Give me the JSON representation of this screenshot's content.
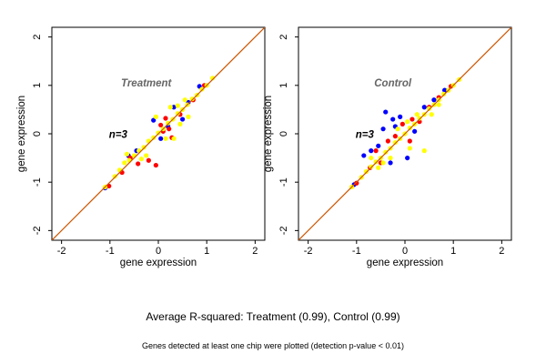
{
  "figure": {
    "summary": "Average R-squared: Treatment (0.99), Control (0.99)",
    "footnote": "Genes detected at least one chip were plotted (detection p-value < 0.01)"
  },
  "chart_data": [
    {
      "type": "scatter",
      "title": "Treatment",
      "annotation": "n=3",
      "xlabel": "gene expression",
      "ylabel": "gene expression",
      "xlim": [
        -2.2,
        2.2
      ],
      "ylim": [
        -2.2,
        2.2
      ],
      "xticks": [
        "-2",
        "-1",
        "0",
        "1",
        "2"
      ],
      "yticks": [
        "-2",
        "-1",
        "0",
        "1",
        "2"
      ],
      "grid": false,
      "reference_line": {
        "slope": 1,
        "intercept": 0,
        "color": "#CC5500"
      },
      "series": [
        {
          "color": "#0000FF",
          "points": [
            [
              -1.1,
              -1.12
            ],
            [
              -0.62,
              -0.45
            ],
            [
              -0.1,
              0.28
            ],
            [
              0.05,
              -0.1
            ],
            [
              0.2,
              0.15
            ],
            [
              0.5,
              0.3
            ],
            [
              0.62,
              0.65
            ],
            [
              0.85,
              0.98
            ],
            [
              -0.45,
              -0.35
            ],
            [
              0.32,
              0.55
            ]
          ]
        },
        {
          "color": "#FF0000",
          "points": [
            [
              -1.02,
              -1.08
            ],
            [
              -0.75,
              -0.8
            ],
            [
              -0.2,
              -0.55
            ],
            [
              -0.05,
              -0.65
            ],
            [
              0.05,
              0.18
            ],
            [
              0.15,
              0.32
            ],
            [
              0.22,
              0.1
            ],
            [
              0.28,
              -0.08
            ],
            [
              -0.42,
              -0.62
            ],
            [
              0.45,
              0.4
            ],
            [
              0.72,
              0.7
            ],
            [
              0.95,
              1.0
            ],
            [
              -0.58,
              -0.5
            ],
            [
              0.1,
              0.05
            ]
          ]
        },
        {
          "color": "#FFFF00",
          "points": [
            [
              -1.1,
              -1.1
            ],
            [
              -0.9,
              -0.88
            ],
            [
              -0.8,
              -0.75
            ],
            [
              -0.7,
              -0.6
            ],
            [
              -0.6,
              -0.55
            ],
            [
              -0.5,
              -0.45
            ],
            [
              -0.4,
              -0.35
            ],
            [
              -0.3,
              -0.28
            ],
            [
              -0.2,
              -0.15
            ],
            [
              -0.1,
              -0.08
            ],
            [
              0.0,
              0.02
            ],
            [
              0.1,
              0.1
            ],
            [
              0.2,
              0.22
            ],
            [
              0.3,
              0.3
            ],
            [
              0.4,
              0.42
            ],
            [
              0.5,
              0.5
            ],
            [
              0.6,
              0.6
            ],
            [
              0.7,
              0.72
            ],
            [
              0.8,
              0.8
            ],
            [
              0.9,
              0.92
            ],
            [
              1.0,
              1.0
            ],
            [
              1.12,
              1.15
            ],
            [
              -0.65,
              -0.42
            ],
            [
              -0.35,
              -0.52
            ],
            [
              0.25,
              0.55
            ],
            [
              0.45,
              0.2
            ],
            [
              0.32,
              -0.1
            ],
            [
              0.55,
              0.7
            ],
            [
              -0.05,
              0.35
            ],
            [
              0.15,
              -0.1
            ],
            [
              0.4,
              0.58
            ],
            [
              -0.25,
              -0.45
            ],
            [
              0.62,
              0.35
            ]
          ]
        }
      ]
    },
    {
      "type": "scatter",
      "title": "Control",
      "annotation": "n=3",
      "xlabel": "gene expression",
      "ylabel": "gene expression",
      "xlim": [
        -2.2,
        2.2
      ],
      "ylim": [
        -2.2,
        2.2
      ],
      "xticks": [
        "-2",
        "-1",
        "0",
        "1",
        "2"
      ],
      "yticks": [
        "-2",
        "-1",
        "0",
        "1",
        "2"
      ],
      "grid": false,
      "reference_line": {
        "slope": 1,
        "intercept": 0,
        "color": "#CC5500"
      },
      "series": [
        {
          "color": "#0000FF",
          "points": [
            [
              -1.05,
              -1.05
            ],
            [
              -0.4,
              0.45
            ],
            [
              -0.7,
              -0.35
            ],
            [
              -0.55,
              -0.25
            ],
            [
              -0.3,
              -0.6
            ],
            [
              -0.2,
              0.15
            ],
            [
              -0.1,
              0.35
            ],
            [
              0.05,
              -0.5
            ],
            [
              -0.85,
              -0.45
            ],
            [
              -0.45,
              0.1
            ],
            [
              0.2,
              0.05
            ],
            [
              0.4,
              0.55
            ],
            [
              0.6,
              0.7
            ],
            [
              0.82,
              0.9
            ],
            [
              -0.25,
              0.3
            ]
          ]
        },
        {
          "color": "#FF0000",
          "points": [
            [
              -1.0,
              -1.02
            ],
            [
              -0.72,
              -0.7
            ],
            [
              -0.5,
              -0.6
            ],
            [
              -0.2,
              -0.05
            ],
            [
              -0.05,
              0.2
            ],
            [
              0.1,
              -0.15
            ],
            [
              0.3,
              0.25
            ],
            [
              0.5,
              0.55
            ],
            [
              0.7,
              0.75
            ],
            [
              0.95,
              0.98
            ],
            [
              -0.35,
              -0.15
            ],
            [
              0.15,
              0.3
            ],
            [
              -0.6,
              -0.35
            ]
          ]
        },
        {
          "color": "#FFFF00",
          "points": [
            [
              -1.1,
              -1.1
            ],
            [
              -0.9,
              -0.9
            ],
            [
              -0.8,
              -0.78
            ],
            [
              -0.7,
              -0.68
            ],
            [
              -0.6,
              -0.58
            ],
            [
              -0.5,
              -0.5
            ],
            [
              -0.4,
              -0.38
            ],
            [
              -0.3,
              -0.3
            ],
            [
              -0.2,
              -0.18
            ],
            [
              -0.1,
              -0.1
            ],
            [
              0.0,
              0.0
            ],
            [
              0.1,
              0.12
            ],
            [
              0.2,
              0.2
            ],
            [
              0.3,
              0.32
            ],
            [
              0.4,
              0.4
            ],
            [
              0.5,
              0.52
            ],
            [
              0.6,
              0.6
            ],
            [
              0.7,
              0.7
            ],
            [
              0.8,
              0.82
            ],
            [
              0.9,
              0.9
            ],
            [
              1.0,
              1.0
            ],
            [
              1.12,
              1.12
            ],
            [
              0.4,
              -0.35
            ],
            [
              0.1,
              -0.3
            ],
            [
              -0.45,
              -0.6
            ],
            [
              -0.7,
              -0.5
            ],
            [
              -0.15,
              0.1
            ],
            [
              0.25,
              0.4
            ],
            [
              -0.55,
              -0.7
            ],
            [
              0.55,
              0.4
            ],
            [
              -0.3,
              -0.5
            ],
            [
              0.05,
              0.25
            ],
            [
              0.7,
              0.6
            ]
          ]
        }
      ]
    }
  ]
}
